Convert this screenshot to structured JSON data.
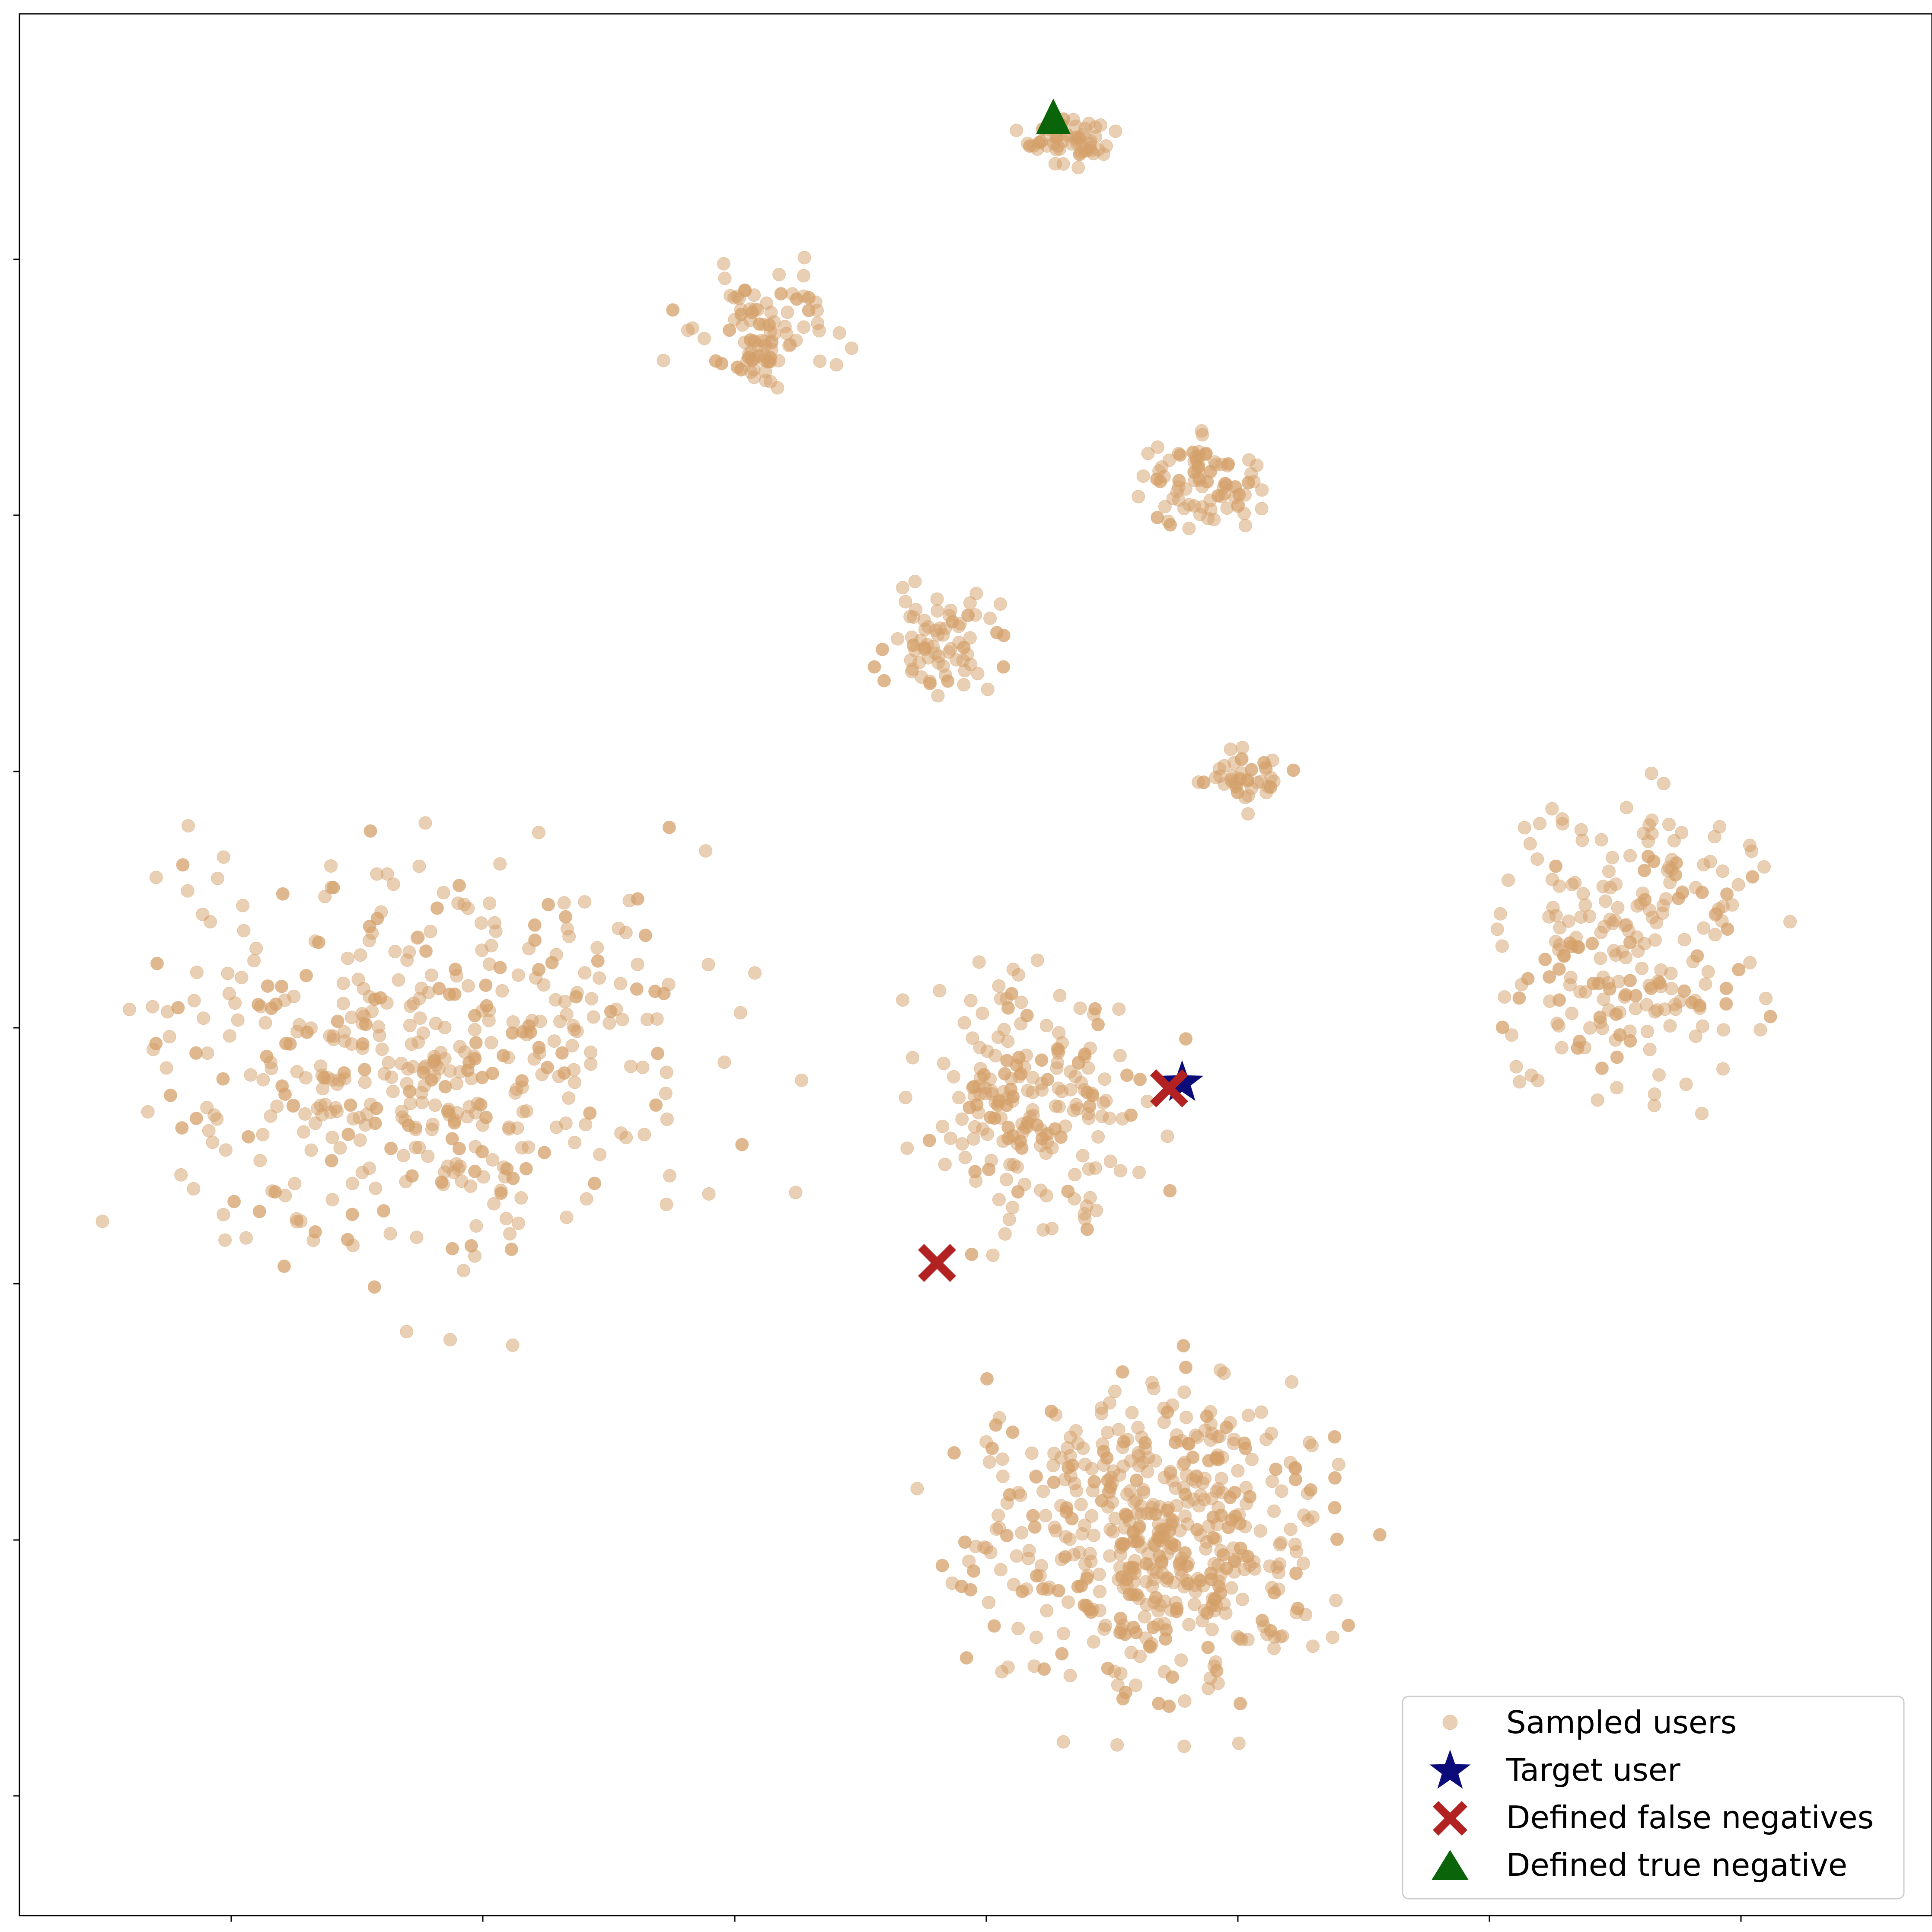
{
  "chart_data": {
    "type": "scatter",
    "title": "",
    "xlabel": "",
    "ylabel": "",
    "x_ticks_shown": 7,
    "y_ticks_shown": 7,
    "tick_labels_shown": false,
    "grid": false,
    "legend_position": "bottom-right",
    "series": [
      {
        "name": "Sampled users",
        "marker": "circle",
        "color": "#d4a06a",
        "clusters": [
          {
            "region": "top-small",
            "points": 55
          },
          {
            "region": "upper-center",
            "points": 90
          },
          {
            "region": "upper-right",
            "points": 80
          },
          {
            "region": "center-top",
            "points": 70
          },
          {
            "region": "mid-right-small",
            "points": 40
          },
          {
            "region": "far-right",
            "points": 220
          },
          {
            "region": "left-large",
            "points": 460
          },
          {
            "region": "center",
            "points": 200
          },
          {
            "region": "bottom-center-large",
            "points": 520
          }
        ]
      },
      {
        "name": "Target user",
        "marker": "star",
        "color": "#0b0b7a"
      },
      {
        "name": "Defined false negatives",
        "marker": "x",
        "color": "#b22222"
      },
      {
        "name": "Defined true negative",
        "marker": "triangle",
        "color": "#0a640a"
      }
    ]
  },
  "legend": {
    "items": [
      {
        "label": "Sampled users"
      },
      {
        "label": "Target user"
      },
      {
        "label": "Defined false negatives"
      },
      {
        "label": "Defined true negative"
      }
    ]
  }
}
